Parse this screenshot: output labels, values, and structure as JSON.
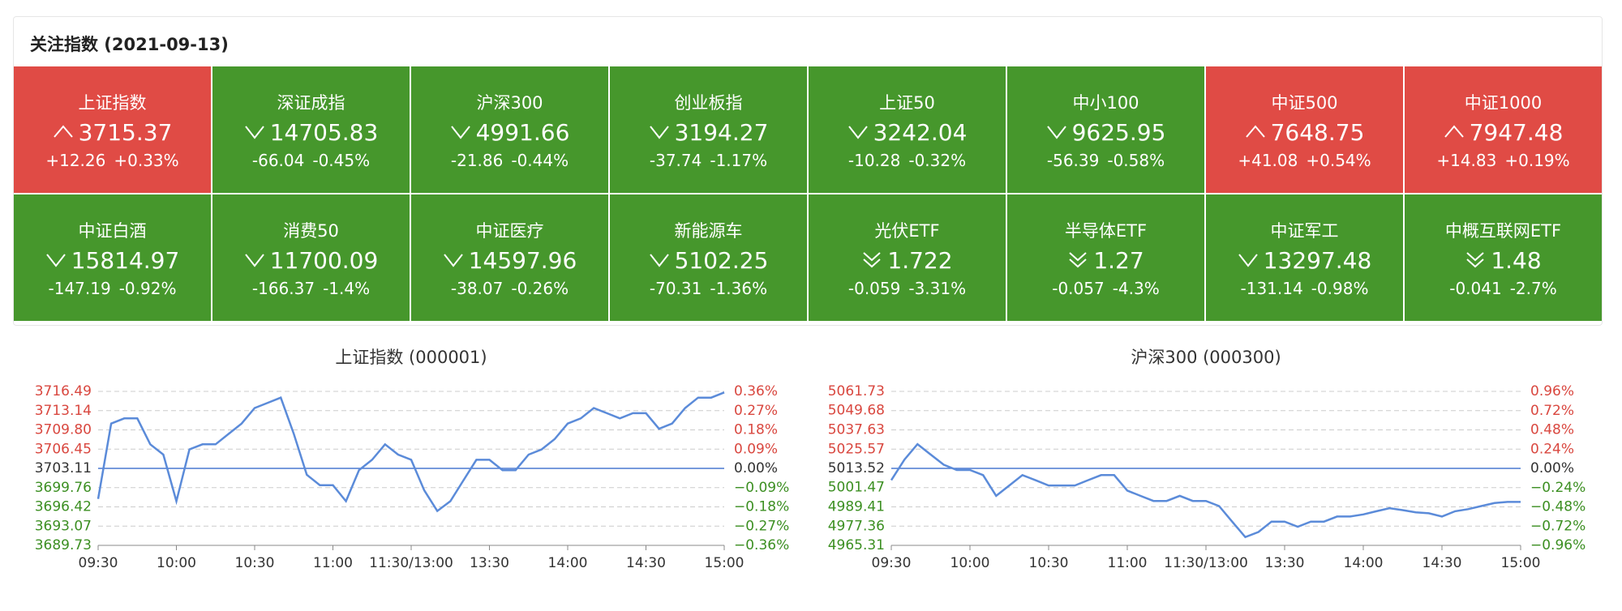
{
  "header": {
    "title": "关注指数 (2021-09-13)"
  },
  "tiles": [
    {
      "name": "上证指数",
      "trend": "up",
      "value": "3715.37",
      "change": "+12.26",
      "pct": "+0.33%",
      "color": "#e04b45"
    },
    {
      "name": "深证成指",
      "trend": "down",
      "value": "14705.83",
      "change": "-66.04",
      "pct": "-0.45%",
      "color": "#46972c"
    },
    {
      "name": "沪深300",
      "trend": "down",
      "value": "4991.66",
      "change": "-21.86",
      "pct": "-0.44%",
      "color": "#46972c"
    },
    {
      "name": "创业板指",
      "trend": "down",
      "value": "3194.27",
      "change": "-37.74",
      "pct": "-1.17%",
      "color": "#46972c"
    },
    {
      "name": "上证50",
      "trend": "down",
      "value": "3242.04",
      "change": "-10.28",
      "pct": "-0.32%",
      "color": "#46972c"
    },
    {
      "name": "中小100",
      "trend": "down",
      "value": "9625.95",
      "change": "-56.39",
      "pct": "-0.58%",
      "color": "#46972c"
    },
    {
      "name": "中证500",
      "trend": "up",
      "value": "7648.75",
      "change": "+41.08",
      "pct": "+0.54%",
      "color": "#e04b45"
    },
    {
      "name": "中证1000",
      "trend": "up",
      "value": "7947.48",
      "change": "+14.83",
      "pct": "+0.19%",
      "color": "#e04b45"
    },
    {
      "name": "中证白酒",
      "trend": "down",
      "value": "15814.97",
      "change": "-147.19",
      "pct": "-0.92%",
      "color": "#46972c"
    },
    {
      "name": "消费50",
      "trend": "down",
      "value": "11700.09",
      "change": "-166.37",
      "pct": "-1.4%",
      "color": "#46972c"
    },
    {
      "name": "中证医疗",
      "trend": "down",
      "value": "14597.96",
      "change": "-38.07",
      "pct": "-0.26%",
      "color": "#46972c"
    },
    {
      "name": "新能源车",
      "trend": "down",
      "value": "5102.25",
      "change": "-70.31",
      "pct": "-1.36%",
      "color": "#46972c"
    },
    {
      "name": "光伏ETF",
      "trend": "down-strong",
      "value": "1.722",
      "change": "-0.059",
      "pct": "-3.31%",
      "color": "#46972c"
    },
    {
      "name": "半导体ETF",
      "trend": "down-strong",
      "value": "1.27",
      "change": "-0.057",
      "pct": "-4.3%",
      "color": "#46972c"
    },
    {
      "name": "中证军工",
      "trend": "down",
      "value": "13297.48",
      "change": "-131.14",
      "pct": "-0.98%",
      "color": "#46972c"
    },
    {
      "name": "中概互联网ETF",
      "trend": "down-strong",
      "value": "1.48",
      "change": "-0.041",
      "pct": "-2.7%",
      "color": "#46972c"
    }
  ],
  "chart_data": [
    {
      "type": "line",
      "title": "上证指数 (000001)",
      "x": [
        0,
        5,
        10,
        15,
        20,
        25,
        30,
        35,
        40,
        45,
        50,
        55,
        60,
        65,
        70,
        75,
        80,
        85,
        90,
        95,
        100,
        105,
        110,
        115,
        120,
        125,
        130,
        135,
        140,
        145,
        150,
        155,
        160,
        165,
        170,
        175,
        180,
        185,
        190,
        195,
        200,
        205,
        210,
        215,
        220,
        225,
        230,
        235,
        240
      ],
      "series": [
        {
          "color": "#5b8bd9",
          "values": [
            3697.8,
            3710.9,
            3711.8,
            3711.8,
            3707.3,
            3705.5,
            3697.4,
            3706.4,
            3707.3,
            3707.3,
            3709.1,
            3710.9,
            3713.6,
            3714.5,
            3715.4,
            3709.1,
            3702.0,
            3700.2,
            3700.2,
            3697.4,
            3702.8,
            3704.6,
            3707.3,
            3705.5,
            3704.6,
            3699.3,
            3695.7,
            3697.4,
            3701.0,
            3704.6,
            3704.6,
            3702.8,
            3702.8,
            3705.5,
            3706.4,
            3708.2,
            3710.9,
            3711.8,
            3713.6,
            3712.7,
            3711.8,
            3712.7,
            3712.7,
            3710.0,
            3710.9,
            3713.6,
            3715.4,
            3715.4,
            3716.3
          ]
        }
      ],
      "xlim": [
        0,
        240
      ],
      "xticks": [
        {
          "value": 0,
          "label": "09:30"
        },
        {
          "value": 30,
          "label": "10:00"
        },
        {
          "value": 60,
          "label": "10:30"
        },
        {
          "value": 90,
          "label": "11:00"
        },
        {
          "value": 120,
          "label": "11:30/13:00"
        },
        {
          "value": 150,
          "label": "13:30"
        },
        {
          "value": 180,
          "label": "14:00"
        },
        {
          "value": 210,
          "label": "14:30"
        },
        {
          "value": 240,
          "label": "15:00"
        }
      ],
      "ylim": [
        3689.73,
        3716.49
      ],
      "yticks": [
        3716.49,
        3713.14,
        {
          "value": 3709.8,
          "label": "3709.80"
        },
        3706.45,
        3703.11,
        3699.76,
        3696.42,
        3693.07,
        3689.73
      ],
      "y2lim": [
        -0.36,
        0.36
      ],
      "y2ticks": [
        {
          "value": 0.36,
          "label": "0.36%"
        },
        {
          "value": 0.27,
          "label": "0.27%"
        },
        {
          "value": 0.18,
          "label": "0.18%"
        },
        {
          "value": 0.09,
          "label": "0.09%"
        },
        {
          "value": 0,
          "label": "0.00%"
        },
        {
          "value": -0.09,
          "label": "−0.09%"
        },
        {
          "value": -0.18,
          "label": "−0.18%"
        },
        {
          "value": -0.27,
          "label": "−0.27%"
        },
        {
          "value": -0.36,
          "label": "−0.36%"
        }
      ],
      "grid": true
    },
    {
      "type": "line",
      "title": "沪深300 (000300)",
      "x": [
        0,
        5,
        10,
        15,
        20,
        25,
        30,
        35,
        40,
        45,
        50,
        55,
        60,
        65,
        70,
        75,
        80,
        85,
        90,
        95,
        100,
        105,
        110,
        115,
        120,
        125,
        130,
        135,
        140,
        145,
        150,
        155,
        160,
        165,
        170,
        175,
        180,
        185,
        190,
        195,
        200,
        205,
        210,
        215,
        220,
        225,
        230,
        235,
        240
      ],
      "series": [
        {
          "color": "#5b8bd9",
          "values": [
            5006.1,
            5019.0,
            5028.7,
            5022.2,
            5015.8,
            5012.5,
            5012.5,
            5009.3,
            4996.3,
            5002.8,
            5009.3,
            5006.1,
            5002.8,
            5002.8,
            5002.8,
            5006.1,
            5009.3,
            5009.3,
            4999.6,
            4996.3,
            4993.1,
            4993.1,
            4996.3,
            4993.1,
            4993.1,
            4989.9,
            4980.2,
            4970.5,
            4973.7,
            4980.2,
            4980.2,
            4977.0,
            4980.2,
            4980.2,
            4983.4,
            4983.4,
            4984.7,
            4986.7,
            4988.6,
            4987.4,
            4986.0,
            4985.4,
            4983.4,
            4986.7,
            4988.0,
            4989.9,
            4991.8,
            4992.5,
            4992.5
          ]
        }
      ],
      "xlim": [
        0,
        240
      ],
      "xticks": [
        {
          "value": 0,
          "label": "09:30"
        },
        {
          "value": 30,
          "label": "10:00"
        },
        {
          "value": 60,
          "label": "10:30"
        },
        {
          "value": 90,
          "label": "11:00"
        },
        {
          "value": 120,
          "label": "11:30/13:00"
        },
        {
          "value": 150,
          "label": "13:30"
        },
        {
          "value": 180,
          "label": "14:00"
        },
        {
          "value": 210,
          "label": "14:30"
        },
        {
          "value": 240,
          "label": "15:00"
        }
      ],
      "ylim": [
        4965.31,
        5061.73
      ],
      "yticks": [
        5061.73,
        5049.68,
        5037.63,
        5025.57,
        5013.52,
        5001.47,
        4989.41,
        4977.36,
        4965.31
      ],
      "y2lim": [
        -0.96,
        0.96
      ],
      "y2ticks": [
        {
          "value": 0.96,
          "label": "0.96%"
        },
        {
          "value": 0.72,
          "label": "0.72%"
        },
        {
          "value": 0.48,
          "label": "0.48%"
        },
        {
          "value": 0.24,
          "label": "0.24%"
        },
        {
          "value": 0,
          "label": "0.00%"
        },
        {
          "value": -0.24,
          "label": "−0.24%"
        },
        {
          "value": -0.48,
          "label": "−0.48%"
        },
        {
          "value": -0.72,
          "label": "−0.72%"
        },
        {
          "value": -0.96,
          "label": "−0.96%"
        }
      ],
      "grid": true
    }
  ]
}
